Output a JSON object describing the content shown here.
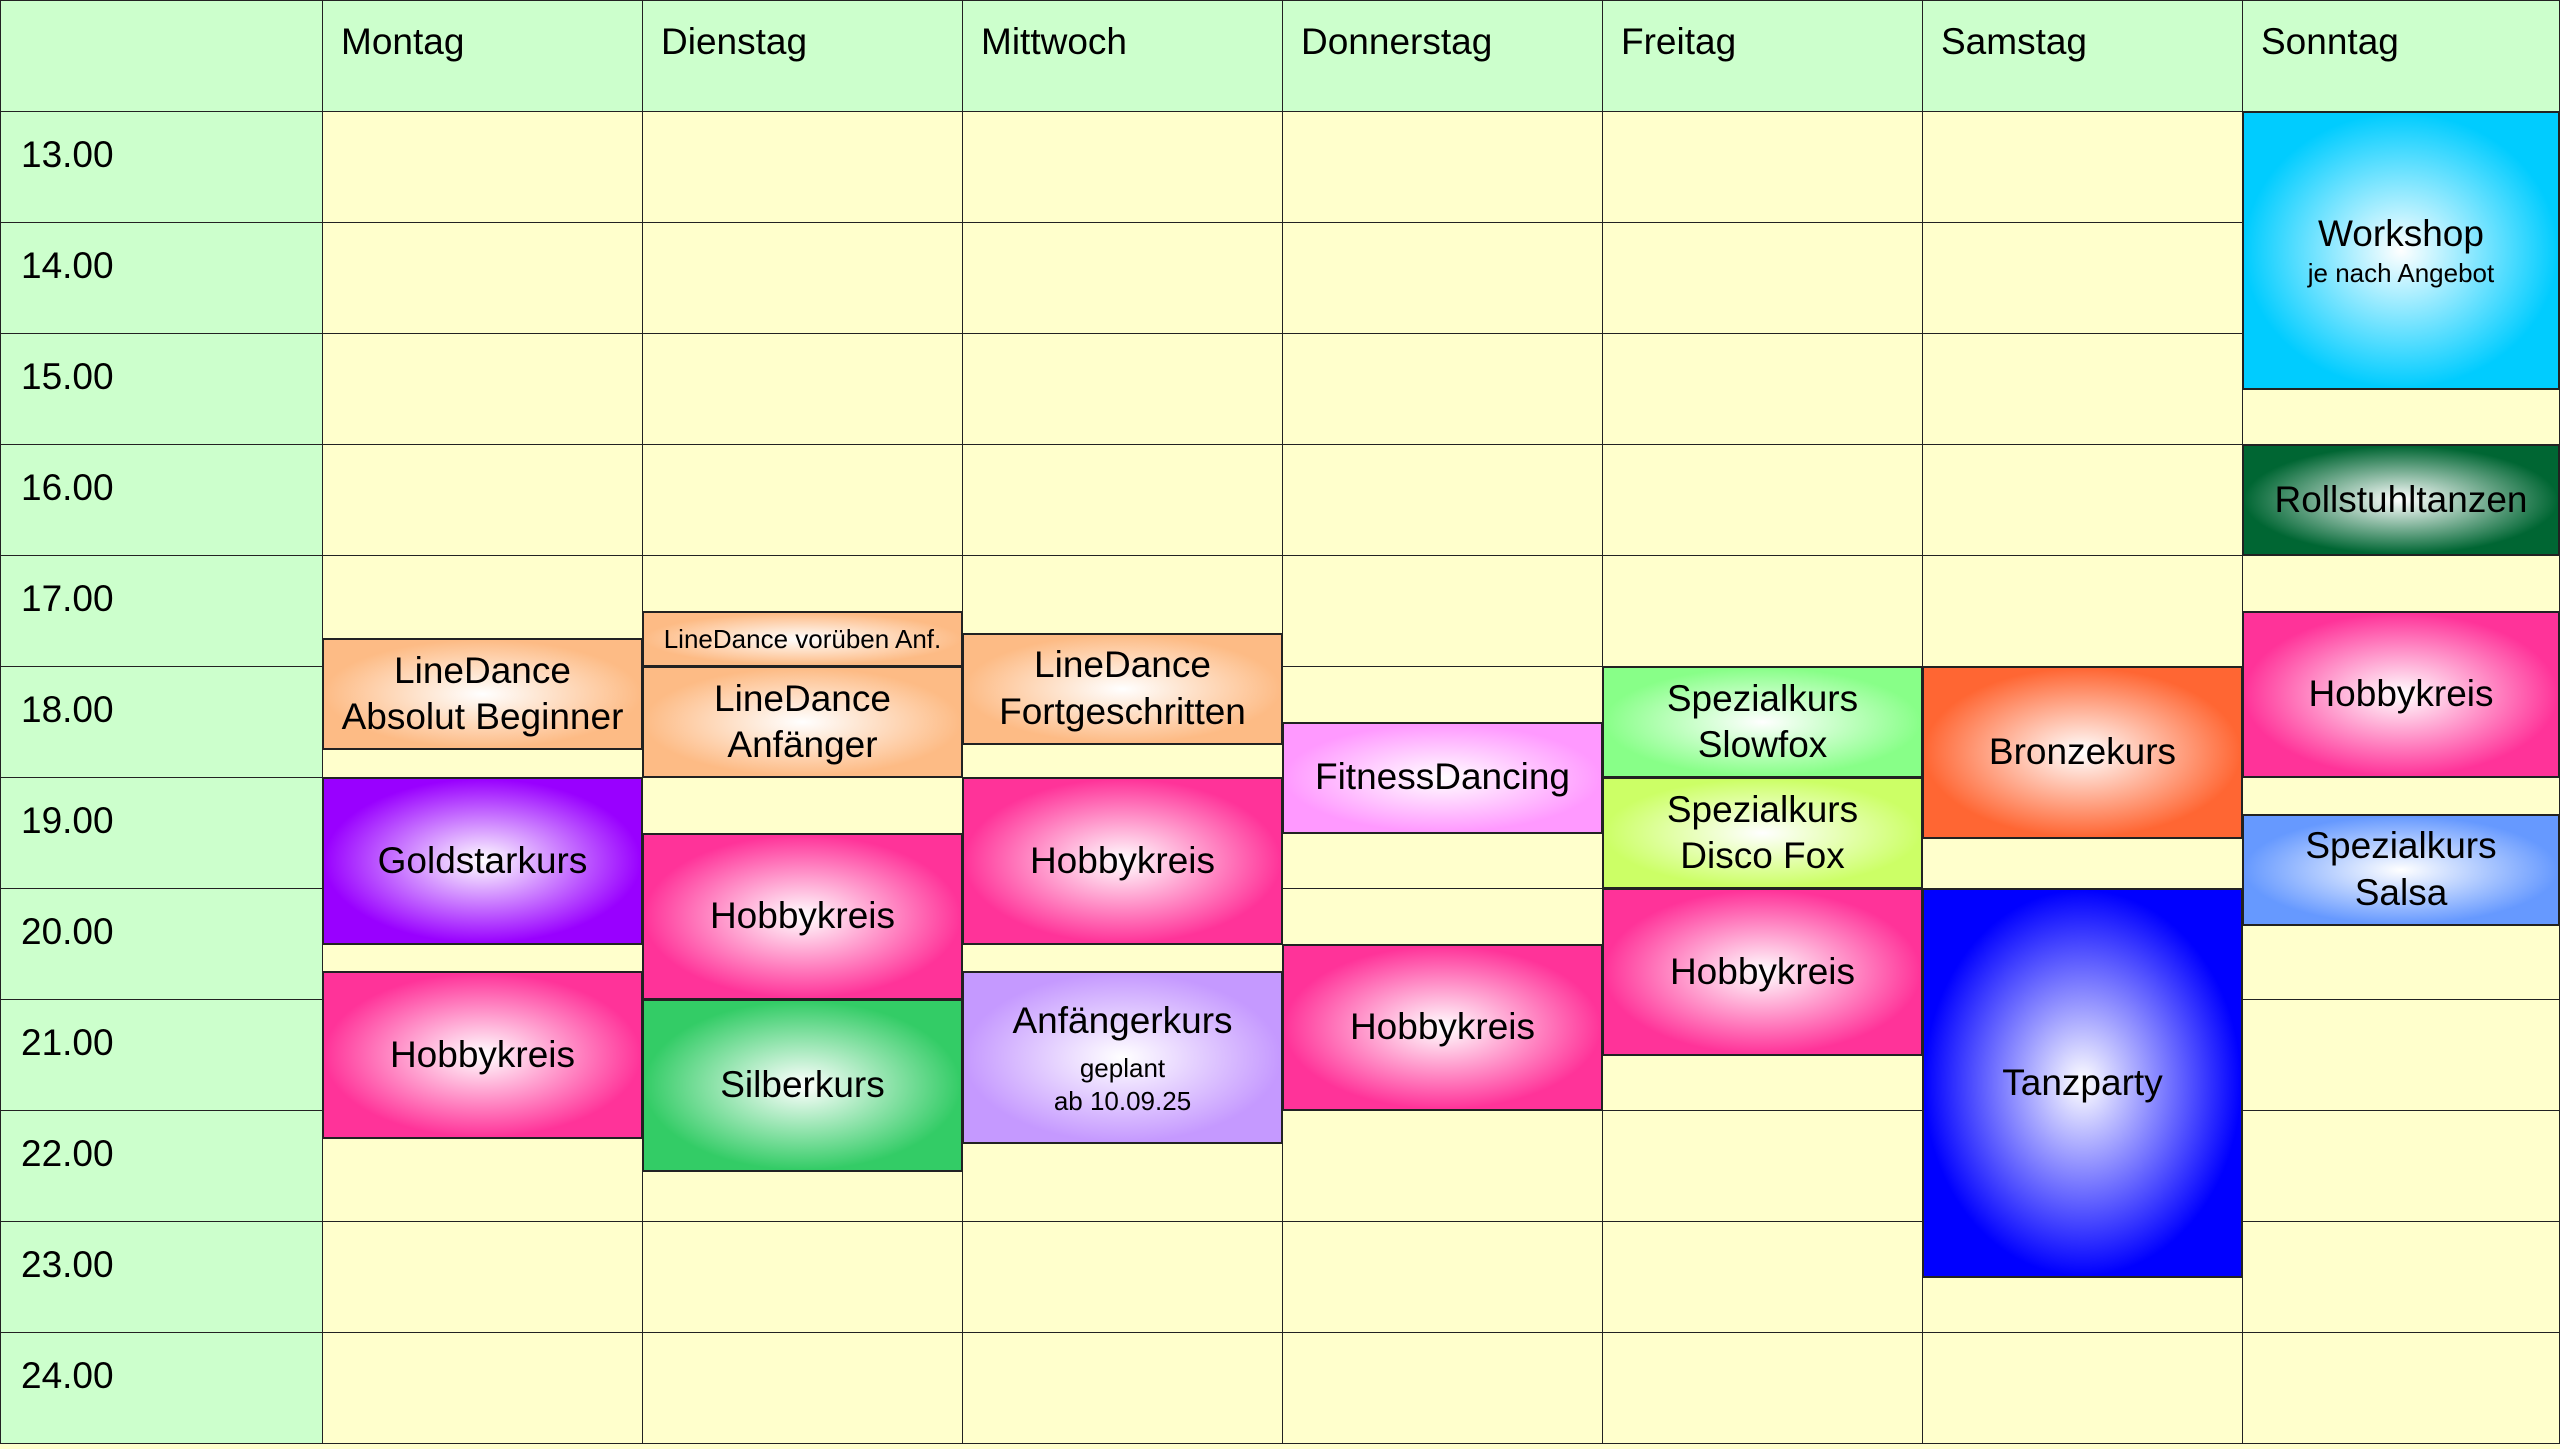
{
  "days": [
    "Montag",
    "Dienstag",
    "Mittwoch",
    "Donnerstag",
    "Freitag",
    "Samstag",
    "Sonntag"
  ],
  "hours": [
    "13.00",
    "14.00",
    "15.00",
    "16.00",
    "17.00",
    "18.00",
    "19.00",
    "20.00",
    "21.00",
    "22.00",
    "23.00",
    "24.00"
  ],
  "colors": {
    "header": "#ccffcc",
    "cell": "#ffffcc",
    "grid": "#222222"
  },
  "events": [
    {
      "day": 0,
      "start": 17.75,
      "end": 18.75,
      "title": "LineDance",
      "sub_title": "Absolut Beginner",
      "color": "#fdbb85"
    },
    {
      "day": 0,
      "start": 19.0,
      "end": 20.5,
      "title": "Goldstarkurs",
      "color": "#9900ff"
    },
    {
      "day": 0,
      "start": 20.75,
      "end": 22.25,
      "title": "Hobbykreis",
      "color": "#ff3399"
    },
    {
      "day": 1,
      "start": 17.5,
      "end": 18.0,
      "title": "LineDance vorüben Anf.",
      "color": "#fdbb85",
      "small": true
    },
    {
      "day": 1,
      "start": 18.0,
      "end": 19.0,
      "title": "LineDance",
      "sub_title": "Anfänger",
      "color": "#fdbb85"
    },
    {
      "day": 1,
      "start": 19.5,
      "end": 21.0,
      "title": "Hobbykreis",
      "color": "#ff3399"
    },
    {
      "day": 1,
      "start": 21.0,
      "end": 22.55,
      "title": "Silberkurs",
      "color": "#33cc66"
    },
    {
      "day": 2,
      "start": 17.7,
      "end": 18.7,
      "title": "LineDance",
      "sub_title": "Fortgeschritten",
      "color": "#fdbb85"
    },
    {
      "day": 2,
      "start": 19.0,
      "end": 20.5,
      "title": "Hobbykreis",
      "color": "#ff3399"
    },
    {
      "day": 2,
      "start": 20.75,
      "end": 22.3,
      "title": "Anfängerkurs",
      "note": [
        "geplant",
        "ab 10.09.25"
      ],
      "color": "#c599ff"
    },
    {
      "day": 3,
      "start": 18.5,
      "end": 19.5,
      "title": "FitnessDancing",
      "color": "#ff99ff"
    },
    {
      "day": 3,
      "start": 20.5,
      "end": 22.0,
      "title": "Hobbykreis",
      "color": "#ff3399"
    },
    {
      "day": 4,
      "start": 18.0,
      "end": 19.0,
      "title": "Spezialkurs",
      "sub_title": "Slowfox",
      "color": "#88ff88"
    },
    {
      "day": 4,
      "start": 19.0,
      "end": 20.0,
      "title": "Spezialkurs",
      "sub_title": "Disco Fox",
      "color": "#ccff66"
    },
    {
      "day": 4,
      "start": 20.0,
      "end": 21.5,
      "title": "Hobbykreis",
      "color": "#ff3399"
    },
    {
      "day": 5,
      "start": 18.0,
      "end": 19.55,
      "title": "Bronzekurs",
      "color": "#ff6633"
    },
    {
      "day": 5,
      "start": 20.0,
      "end": 23.5,
      "title": "Tanzparty",
      "color": "#0000ff"
    },
    {
      "day": 6,
      "start": 13.0,
      "end": 15.5,
      "title": "Workshop",
      "note": [
        "je nach Angebot"
      ],
      "color": "#00ccff"
    },
    {
      "day": 6,
      "start": 16.0,
      "end": 17.0,
      "title": "Rollstuhltanzen",
      "color": "#006633"
    },
    {
      "day": 6,
      "start": 17.5,
      "end": 19.0,
      "title": "Hobbykreis",
      "color": "#ff3399"
    },
    {
      "day": 6,
      "start": 19.33,
      "end": 20.33,
      "title": "Spezialkurs",
      "sub_title": "Salsa",
      "color": "#6699ff"
    }
  ]
}
